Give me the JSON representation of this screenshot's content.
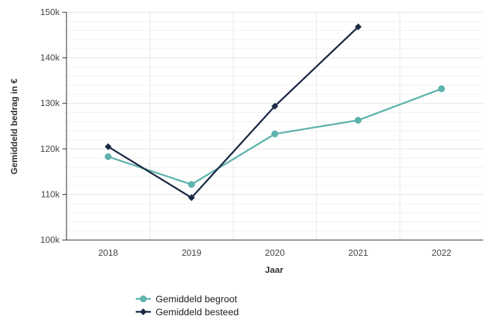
{
  "chart_data": {
    "type": "line",
    "xlabel": "Jaar",
    "ylabel": "Gemiddeld bedrag in €",
    "categories": [
      "2018",
      "2019",
      "2020",
      "2021",
      "2022"
    ],
    "ylim": [
      100000,
      150000
    ],
    "yticks": [
      100000,
      110000,
      120000,
      130000,
      140000,
      150000
    ],
    "ytick_labels": [
      "100k",
      "110k",
      "120k",
      "130k",
      "140k",
      "150k"
    ],
    "grid": true,
    "legend_position": "bottom-center",
    "series": [
      {
        "name": "Gemiddeld begroot",
        "values": [
          118300,
          112200,
          123300,
          126300,
          133200
        ],
        "color": "#5fb3ad",
        "marker": "circle"
      },
      {
        "name": "Gemiddeld besteed",
        "values": [
          120500,
          109300,
          129400,
          146800,
          null
        ],
        "color": "#1b2b44",
        "marker": "diamond"
      }
    ]
  }
}
